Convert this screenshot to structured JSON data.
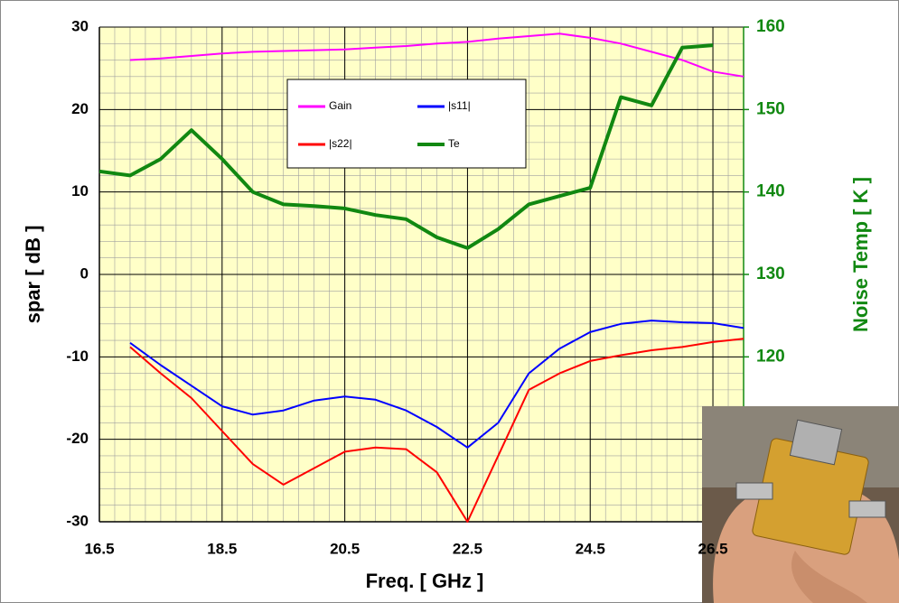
{
  "chart_data": {
    "type": "line",
    "x": [
      16.5,
      17,
      17.5,
      18,
      18.5,
      19,
      19.5,
      20,
      20.5,
      21,
      21.5,
      22,
      22.5,
      23,
      23.5,
      24,
      24.5,
      25,
      25.5,
      26,
      26.5,
      27
    ],
    "series": [
      {
        "name": "Gain",
        "color": "#ff00ff",
        "values": [
          null,
          26,
          26.2,
          26.5,
          26.8,
          27,
          27.1,
          27.2,
          27.3,
          27.5,
          27.7,
          28,
          28.2,
          28.6,
          28.9,
          29.2,
          28.7,
          28,
          27,
          26,
          24.6,
          24
        ]
      },
      {
        "name": "|s11|",
        "color": "#0000ff",
        "values": [
          null,
          -8.3,
          -11,
          -13.5,
          -16,
          -17,
          -16.5,
          -15.3,
          -14.8,
          -15.2,
          -16.5,
          -18.5,
          -21,
          -18,
          -12,
          -9,
          -7,
          -6,
          -5.6,
          -5.8,
          -5.9,
          -6.5
        ]
      },
      {
        "name": "|s22|",
        "color": "#ff0000",
        "values": [
          null,
          -8.8,
          -12,
          -15,
          -19,
          -23,
          -25.5,
          -23.5,
          -21.5,
          -21,
          -21.2,
          -24,
          -30,
          -22,
          -14,
          -12,
          -10.5,
          -9.8,
          -9.2,
          -8.8,
          -8.2,
          -7.8
        ]
      },
      {
        "name": "Te",
        "color": "#118811",
        "axis": "y2",
        "values": [
          142.5,
          142,
          144,
          147.5,
          144,
          140,
          138.5,
          138.3,
          138,
          137.2,
          136.7,
          134.5,
          133.2,
          135.5,
          138.5,
          139.5,
          140.5,
          151.5,
          150.5,
          157.5,
          157.8,
          null
        ]
      }
    ],
    "xlabel": "Freq. [ GHz ]",
    "ylabel": "spar [ dB ]",
    "y2label": "Noise Temp [ K ]",
    "xlim": [
      16.5,
      27
    ],
    "xticks": [
      16.5,
      18.5,
      20.5,
      22.5,
      24.5,
      26.5
    ],
    "ylim": [
      -30,
      30
    ],
    "yticks": [
      -30,
      -20,
      -10,
      0,
      10,
      20,
      30
    ],
    "y2lim": [
      100,
      160
    ],
    "y2ticks": [
      120,
      130,
      140,
      150,
      160
    ],
    "grid": true,
    "minor_grid": true,
    "background": "#ffffc8"
  }
}
